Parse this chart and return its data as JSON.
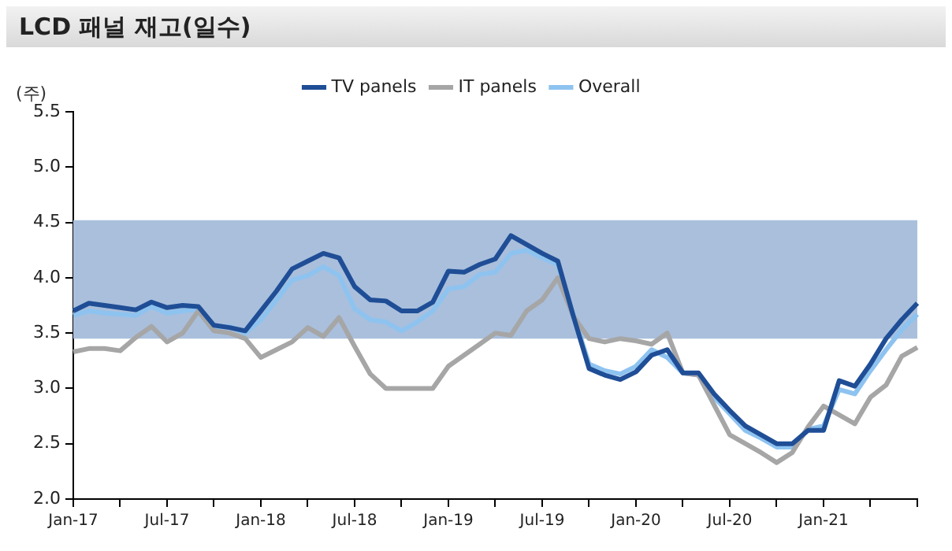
{
  "chart_data": {
    "type": "line",
    "title": "LCD 패널 재고(일수)",
    "ylabel": "(주)",
    "categories": [
      "Jan-17",
      null,
      null,
      null,
      null,
      null,
      "Jul-17",
      null,
      null,
      null,
      null,
      null,
      "Jan-18",
      null,
      null,
      null,
      null,
      null,
      "Jul-18",
      null,
      null,
      null,
      null,
      null,
      "Jan-19",
      null,
      null,
      null,
      null,
      null,
      "Jul-19",
      null,
      null,
      null,
      null,
      null,
      "Jan-20",
      null,
      null,
      null,
      null,
      null,
      "Jul-20",
      null,
      null,
      null,
      null,
      null,
      "Jan-21",
      null,
      null,
      null,
      null,
      null,
      null
    ],
    "series": [
      {
        "name": "TV panels",
        "color": "#1f4e96",
        "values": [
          3.7,
          3.77,
          3.75,
          3.73,
          3.71,
          3.78,
          3.73,
          3.75,
          3.74,
          3.57,
          3.55,
          3.52,
          3.7,
          3.88,
          4.08,
          4.15,
          4.22,
          4.18,
          3.92,
          3.8,
          3.79,
          3.7,
          3.7,
          3.78,
          4.06,
          4.05,
          4.12,
          4.17,
          4.38,
          4.3,
          4.22,
          4.15,
          3.65,
          3.18,
          3.12,
          3.08,
          3.15,
          3.3,
          3.35,
          3.14,
          3.14,
          2.95,
          2.8,
          2.66,
          2.58,
          2.5,
          2.5,
          2.62,
          2.62,
          3.07,
          3.02,
          3.22,
          3.45,
          3.62,
          3.77
        ]
      },
      {
        "name": "IT panels",
        "color": "#a6a6a6",
        "values": [
          3.33,
          3.36,
          3.36,
          3.34,
          3.46,
          3.56,
          3.42,
          3.5,
          3.7,
          3.52,
          3.5,
          3.45,
          3.28,
          3.35,
          3.42,
          3.55,
          3.47,
          3.64,
          3.38,
          3.13,
          3.0,
          3.0,
          3.0,
          3.0,
          3.2,
          3.3,
          3.4,
          3.5,
          3.48,
          3.7,
          3.8,
          4.0,
          3.65,
          3.45,
          3.42,
          3.45,
          3.43,
          3.4,
          3.5,
          3.14,
          3.12,
          2.85,
          2.58,
          2.5,
          2.42,
          2.33,
          2.42,
          2.65,
          2.84,
          2.76,
          2.68,
          2.92,
          3.03,
          3.29,
          3.37
        ]
      },
      {
        "name": "Overall",
        "color": "#8ec3f0",
        "values": [
          3.66,
          3.7,
          3.68,
          3.67,
          3.66,
          3.74,
          3.68,
          3.7,
          3.72,
          3.55,
          3.56,
          3.5,
          3.62,
          3.8,
          3.98,
          4.02,
          4.1,
          4.02,
          3.72,
          3.62,
          3.6,
          3.52,
          3.6,
          3.7,
          3.9,
          3.92,
          4.03,
          4.05,
          4.22,
          4.25,
          4.18,
          4.12,
          3.66,
          3.22,
          3.16,
          3.13,
          3.2,
          3.35,
          3.28,
          3.14,
          3.12,
          2.92,
          2.77,
          2.62,
          2.55,
          2.47,
          2.47,
          2.63,
          2.66,
          2.99,
          2.95,
          3.16,
          3.35,
          3.53,
          3.67
        ]
      }
    ],
    "ylim": [
      2.0,
      5.5
    ],
    "yticks": [
      {
        "value": 2,
        "label": "2.0"
      },
      {
        "value": 2.5,
        "label": "2.5"
      },
      {
        "value": 3,
        "label": "3.0"
      },
      {
        "value": 3.5,
        "label": "3.5"
      },
      {
        "value": 4,
        "label": "4.0"
      },
      {
        "value": 4.5,
        "label": "4.5"
      },
      {
        "value": 5,
        "label": "5.0"
      },
      {
        "value": 5.5,
        "label": "5.5"
      }
    ],
    "bands": [
      {
        "axis": "y",
        "from": 3.45,
        "to": 4.52,
        "color": "#a9bfdc"
      }
    ],
    "legend": "top",
    "grid": false,
    "marker": "none",
    "line_style": "solid"
  }
}
